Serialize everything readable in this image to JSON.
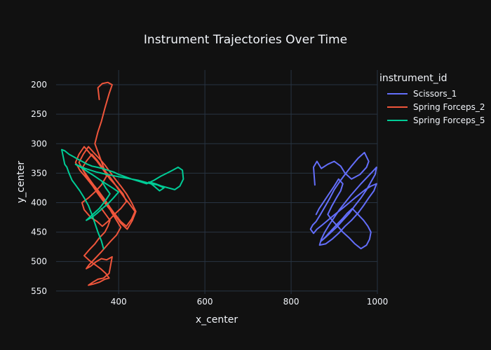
{
  "chart_data": {
    "type": "line",
    "title": "Instrument Trajectories Over Time",
    "xlabel": "x_center",
    "ylabel": "y_center",
    "xlim": [
      255,
      1000
    ],
    "ylim": [
      555,
      175
    ],
    "y_reversed": true,
    "x_ticks": [
      400,
      600,
      800,
      1000
    ],
    "y_ticks": [
      200,
      250,
      300,
      350,
      400,
      450,
      500,
      550
    ],
    "grid": true,
    "legend": {
      "title": "instrument_id",
      "placement": "right"
    },
    "series": [
      {
        "name": "Scissors_1",
        "color": "#636efa",
        "x": [
          855,
          852,
          860,
          870,
          885,
          900,
          915,
          925,
          940,
          960,
          975,
          980,
          970,
          955,
          940,
          925,
          912,
          900,
          890,
          880,
          868,
          858,
          850,
          845,
          852,
          860,
          872,
          885,
          898,
          910,
          922,
          935,
          948,
          960,
          972,
          985,
          998,
          992,
          980,
          968,
          955,
          940,
          925,
          910,
          895,
          880,
          866,
          870,
          878,
          888,
          900,
          912,
          925,
          938,
          950,
          962,
          975,
          988,
          998,
          995,
          985,
          975,
          962,
          948,
          935,
          920,
          905,
          890,
          878,
          870,
          880,
          892,
          905,
          918,
          930,
          942,
          955,
          968,
          978,
          985,
          982,
          975,
          962,
          948,
          935,
          920,
          908,
          895,
          885,
          895,
          905,
          915,
          920,
          910,
          900,
          888,
          876,
          865,
          858
        ],
        "y": [
          370,
          340,
          330,
          342,
          335,
          330,
          338,
          350,
          360,
          352,
          340,
          330,
          315,
          325,
          338,
          352,
          365,
          378,
          392,
          405,
          420,
          432,
          438,
          445,
          452,
          445,
          438,
          430,
          422,
          415,
          408,
          400,
          392,
          385,
          378,
          372,
          368,
          380,
          392,
          405,
          418,
          430,
          440,
          452,
          462,
          470,
          472,
          462,
          450,
          438,
          425,
          412,
          400,
          388,
          378,
          368,
          358,
          348,
          340,
          352,
          365,
          378,
          392,
          405,
          418,
          430,
          442,
          452,
          460,
          465,
          458,
          448,
          438,
          428,
          418,
          410,
          420,
          430,
          440,
          450,
          462,
          472,
          478,
          470,
          460,
          450,
          440,
          430,
          420,
          405,
          392,
          380,
          368,
          360,
          372,
          385,
          398,
          410,
          420
        ]
      },
      {
        "name": "Spring Forceps_2",
        "color": "#ef553b",
        "x": [
          355,
          352,
          362,
          375,
          385,
          378,
          368,
          360,
          352,
          345,
          355,
          365,
          372,
          360,
          345,
          330,
          315,
          320,
          335,
          350,
          362,
          375,
          390,
          405,
          418,
          410,
          395,
          380,
          365,
          350,
          335,
          320,
          308,
          300,
          310,
          325,
          340,
          352,
          365,
          378,
          392,
          405,
          420,
          432,
          440,
          430,
          418,
          405,
          392,
          380,
          368,
          355,
          342,
          330,
          318,
          308,
          318,
          330,
          342,
          355,
          368,
          380,
          392,
          405,
          418,
          430,
          438,
          425,
          412,
          400,
          388,
          375,
          362,
          350,
          338,
          325,
          315,
          325,
          338,
          350,
          362,
          375,
          385,
          395,
          405,
          395,
          382,
          370,
          358,
          345,
          332,
          325,
          335,
          348,
          360,
          372,
          385,
          378,
          365,
          352,
          340,
          330,
          342,
          355,
          368,
          378,
          370,
          358,
          345,
          332,
          320,
          332,
          345,
          355,
          368,
          375,
          380,
          370,
          360
        ],
        "y": [
          225,
          205,
          198,
          196,
          200,
          215,
          240,
          262,
          280,
          300,
          320,
          340,
          355,
          370,
          382,
          392,
          400,
          412,
          425,
          432,
          440,
          432,
          420,
          410,
          398,
          385,
          372,
          360,
          345,
          330,
          318,
          305,
          318,
          332,
          345,
          358,
          372,
          385,
          398,
          410,
          422,
          435,
          445,
          430,
          415,
          400,
          385,
          372,
          360,
          348,
          336,
          325,
          315,
          305,
          318,
          332,
          345,
          358,
          370,
          382,
          395,
          408,
          420,
          432,
          440,
          428,
          415,
          402,
          390,
          378,
          365,
          352,
          340,
          328,
          318,
          330,
          342,
          355,
          368,
          380,
          392,
          405,
          418,
          430,
          442,
          455,
          465,
          475,
          485,
          495,
          505,
          512,
          508,
          500,
          495,
          497,
          492,
          520,
          528,
          530,
          535,
          540,
          538,
          535,
          530,
          528,
          520,
          512,
          505,
          498,
          490,
          480,
          470,
          460,
          450,
          440,
          430,
          420,
          410
        ]
      },
      {
        "name": "Spring Forceps_5",
        "color": "#00cc96",
        "x": [
          365,
          360,
          352,
          345,
          338,
          330,
          320,
          310,
          300,
          292,
          285,
          280,
          275,
          268,
          275,
          285,
          295,
          305,
          315,
          325,
          338,
          350,
          362,
          375,
          388,
          400,
          415,
          430,
          448,
          465,
          482,
          498,
          512,
          525,
          538,
          548,
          550,
          542,
          530,
          515,
          500,
          485,
          470,
          482,
          495,
          505,
          490,
          475,
          460,
          445,
          430,
          415,
          400,
          385,
          372,
          360,
          348,
          335,
          322,
          310,
          300,
          312,
          325,
          338,
          350,
          362,
          375,
          388,
          400,
          388,
          375,
          362,
          350,
          338,
          325,
          340,
          355,
          368,
          380,
          370,
          362
        ],
        "y": [
          478,
          465,
          450,
          435,
          420,
          405,
          392,
          380,
          370,
          362,
          350,
          340,
          335,
          310,
          312,
          318,
          322,
          326,
          330,
          334,
          338,
          340,
          342,
          345,
          348,
          352,
          356,
          360,
          364,
          368,
          362,
          355,
          350,
          345,
          340,
          345,
          360,
          372,
          378,
          375,
          372,
          368,
          365,
          372,
          380,
          375,
          370,
          368,
          365,
          362,
          360,
          358,
          356,
          354,
          352,
          350,
          348,
          345,
          342,
          338,
          335,
          340,
          346,
          352,
          358,
          364,
          370,
          376,
          382,
          392,
          402,
          410,
          418,
          425,
          430,
          420,
          410,
          398,
          385,
          375,
          365
        ]
      }
    ]
  }
}
